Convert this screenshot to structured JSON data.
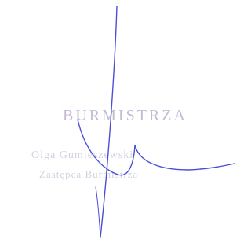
{
  "stamp": {
    "line1": "BURMISTRZA",
    "line2": "Olga Gumieszewski",
    "line3": "Zastępca Burmistrza"
  }
}
